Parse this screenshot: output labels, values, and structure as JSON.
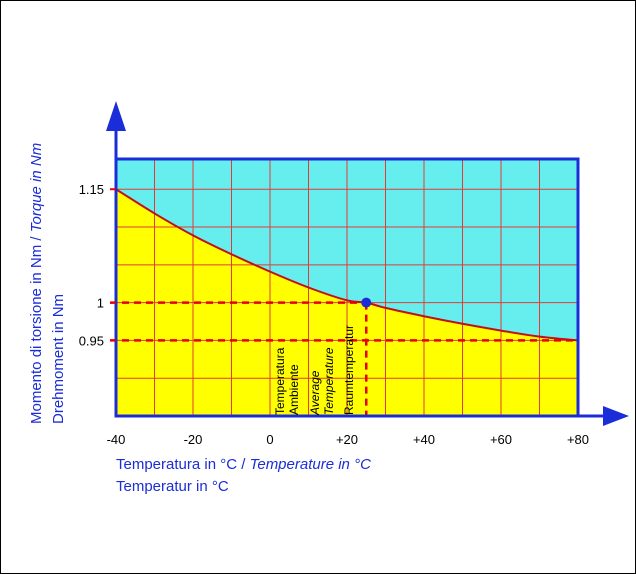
{
  "colors": {
    "above_curve": "#66eeee",
    "below_curve": "#ffff00",
    "grid": "#e23a3a",
    "curve": "#c0101a",
    "dashed": "#e60000",
    "axis": "#1a2dd8",
    "frame": "#1a2dd8",
    "label": "#1a2dd8",
    "marker": "#1a2dd8"
  },
  "chart_data": {
    "type": "area",
    "xlim": [
      -40,
      80
    ],
    "ylim": [
      0.85,
      1.19
    ],
    "grid": true,
    "x_ticks": [
      {
        "value": -40,
        "label": "-40"
      },
      {
        "value": -20,
        "label": "-20"
      },
      {
        "value": 0,
        "label": "0"
      },
      {
        "value": 20,
        "label": "+20"
      },
      {
        "value": 40,
        "label": "+40"
      },
      {
        "value": 60,
        "label": "+60"
      },
      {
        "value": 80,
        "label": "+80"
      }
    ],
    "y_ticks": [
      {
        "value": 1.15,
        "label": "1.15"
      },
      {
        "value": 1.0,
        "label": "1"
      },
      {
        "value": 0.95,
        "label": "0.95"
      }
    ],
    "xlabel": {
      "line1_regular": "Temperatura in °C / ",
      "line1_italic": "Temperature in °C",
      "line2": "Temperatur in °C"
    },
    "ylabel": {
      "line1_regular": "Momento di torsione in Nm / ",
      "line1_italic": "Torque in Nm",
      "line2": "Drehmoment in Nm"
    },
    "series": [
      {
        "x": [
          -40,
          -30,
          -20,
          -10,
          0,
          10,
          20,
          25,
          30,
          40,
          50,
          60,
          70,
          80
        ],
        "y": [
          1.15,
          1.118,
          1.089,
          1.064,
          1.041,
          1.02,
          1.003,
          1.0,
          0.993,
          0.982,
          0.972,
          0.963,
          0.955,
          0.95
        ]
      }
    ],
    "reference_point": {
      "x": 25,
      "y": 1.0
    },
    "reference_lines": [
      {
        "y": 1.0,
        "x_to": 25
      },
      {
        "y": 0.95,
        "x_to": 80
      },
      {
        "x": 25,
        "y_to": 1.0
      }
    ],
    "annotation": {
      "line1": "Temperatura",
      "line2": "Ambiente",
      "line3": "Average",
      "line4": "Temperature",
      "line5": "Raumtemperatur"
    }
  }
}
